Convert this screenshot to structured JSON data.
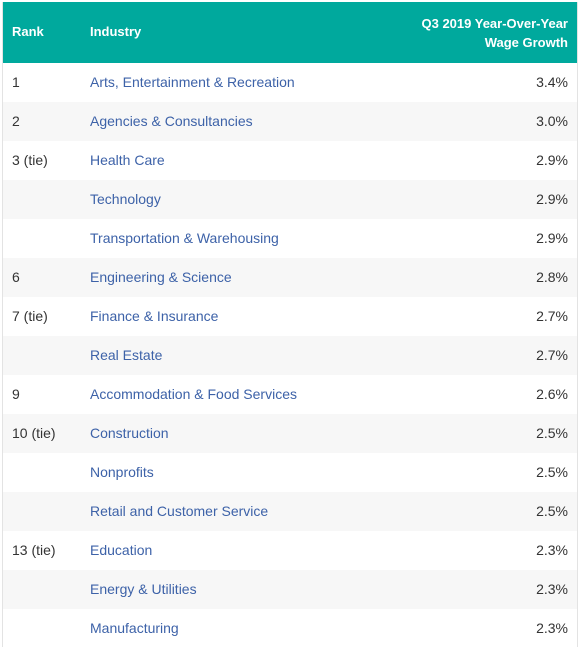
{
  "header": {
    "rank": "Rank",
    "industry": "Industry",
    "growth_line1": "Q3 2019 Year-Over-Year",
    "growth_line2": "Wage Growth"
  },
  "colors": {
    "header_bg": "#00a99d",
    "link": "#3d62a8",
    "row_alt": "#f7f7f7"
  },
  "rows": [
    {
      "rank": "1",
      "industry": "Arts, Entertainment & Recreation",
      "growth": "3.4%"
    },
    {
      "rank": "2",
      "industry": "Agencies & Consultancies",
      "growth": "3.0%"
    },
    {
      "rank": "3 (tie)",
      "industry": "Health Care",
      "growth": "2.9%"
    },
    {
      "rank": "",
      "industry": "Technology",
      "growth": "2.9%"
    },
    {
      "rank": "",
      "industry": "Transportation & Warehousing",
      "growth": "2.9%"
    },
    {
      "rank": "6",
      "industry": "Engineering & Science",
      "growth": "2.8%"
    },
    {
      "rank": "7 (tie)",
      "industry": "Finance & Insurance",
      "growth": "2.7%"
    },
    {
      "rank": "",
      "industry": "Real Estate",
      "growth": "2.7%"
    },
    {
      "rank": "9",
      "industry": "Accommodation & Food Services",
      "growth": "2.6%"
    },
    {
      "rank": "10 (tie)",
      "industry": "Construction",
      "growth": "2.5%"
    },
    {
      "rank": "",
      "industry": "Nonprofits",
      "growth": "2.5%"
    },
    {
      "rank": "",
      "industry": "Retail and Customer Service",
      "growth": "2.5%"
    },
    {
      "rank": "13 (tie)",
      "industry": "Education",
      "growth": "2.3%"
    },
    {
      "rank": "",
      "industry": "Energy & Utilities",
      "growth": "2.3%"
    },
    {
      "rank": "",
      "industry": "Manufacturing",
      "growth": "2.3%"
    }
  ]
}
